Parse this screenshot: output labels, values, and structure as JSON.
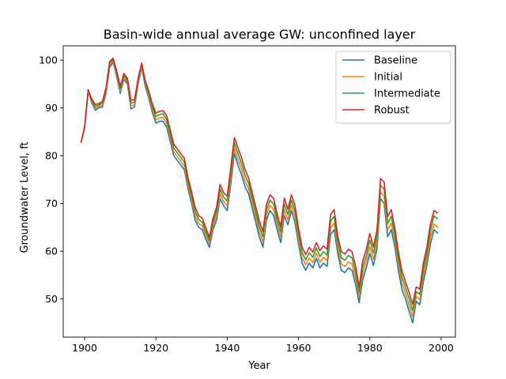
{
  "chart_data": {
    "type": "line",
    "title": "Basin-wide annual average GW: unconfined layer",
    "xlabel": "Year",
    "ylabel": "Groundwater Level, ft",
    "xlim": [
      1894,
      2004
    ],
    "ylim": [
      42,
      103
    ],
    "xticks": [
      1900,
      1920,
      1940,
      1960,
      1980,
      2000
    ],
    "yticks": [
      50,
      60,
      70,
      80,
      90,
      100
    ],
    "grid": false,
    "legend_position": "top-right",
    "x": [
      1899,
      1900,
      1901,
      1902,
      1903,
      1904,
      1905,
      1906,
      1907,
      1908,
      1909,
      1910,
      1911,
      1912,
      1913,
      1914,
      1915,
      1916,
      1917,
      1918,
      1919,
      1920,
      1921,
      1922,
      1923,
      1924,
      1925,
      1926,
      1927,
      1928,
      1929,
      1930,
      1931,
      1932,
      1933,
      1934,
      1935,
      1936,
      1937,
      1938,
      1939,
      1940,
      1941,
      1942,
      1943,
      1944,
      1945,
      1946,
      1947,
      1948,
      1949,
      1950,
      1951,
      1952,
      1953,
      1954,
      1955,
      1956,
      1957,
      1958,
      1959,
      1960,
      1961,
      1962,
      1963,
      1964,
      1965,
      1966,
      1967,
      1968,
      1969,
      1970,
      1971,
      1972,
      1973,
      1974,
      1975,
      1976,
      1977,
      1978,
      1979,
      1980,
      1981,
      1982,
      1983,
      1984,
      1985,
      1986,
      1987,
      1988,
      1989,
      1990,
      1991,
      1992,
      1993,
      1994,
      1995,
      1996,
      1997,
      1998,
      1999
    ],
    "series": [
      {
        "name": "Baseline",
        "color": "#1f77b4",
        "values": [
          82.8,
          85.8,
          93.5,
          91.0,
          89.5,
          90.0,
          90.2,
          93.0,
          98.5,
          99.5,
          96.5,
          93.0,
          96.0,
          95.0,
          89.8,
          90.2,
          95.0,
          98.5,
          94.5,
          92.0,
          89.0,
          86.8,
          87.2,
          87.2,
          86.0,
          83.0,
          80.0,
          79.0,
          78.0,
          77.0,
          73.0,
          70.0,
          66.5,
          65.0,
          64.5,
          62.5,
          60.8,
          64.5,
          66.5,
          71.0,
          69.5,
          68.5,
          74.0,
          80.5,
          78.0,
          76.0,
          73.5,
          72.0,
          69.0,
          66.0,
          63.0,
          60.8,
          66.5,
          68.5,
          67.5,
          64.5,
          61.8,
          67.5,
          65.5,
          68.5,
          66.0,
          61.5,
          57.5,
          56.0,
          57.5,
          56.5,
          58.5,
          56.5,
          57.5,
          56.8,
          63.5,
          64.5,
          59.5,
          56.0,
          55.5,
          56.5,
          56.0,
          53.0,
          49.2,
          54.0,
          56.5,
          59.5,
          57.0,
          60.5,
          71.0,
          70.0,
          63.0,
          64.5,
          61.0,
          56.0,
          52.0,
          50.0,
          47.5,
          45.0,
          49.5,
          48.8,
          53.5,
          57.0,
          61.5,
          64.5,
          63.8
        ]
      },
      {
        "name": "Initial",
        "color": "#ff7f0e",
        "values": [
          82.8,
          85.9,
          93.6,
          91.3,
          89.9,
          90.3,
          90.6,
          93.4,
          98.9,
          99.8,
          96.9,
          93.5,
          96.4,
          95.4,
          90.4,
          90.7,
          95.4,
          98.8,
          94.9,
          92.5,
          89.6,
          87.5,
          87.9,
          88.0,
          86.8,
          83.8,
          80.8,
          79.8,
          78.8,
          77.8,
          73.8,
          70.8,
          67.4,
          65.8,
          65.3,
          63.3,
          61.5,
          65.3,
          67.4,
          72.0,
          70.4,
          69.5,
          75.2,
          81.6,
          79.2,
          77.2,
          74.7,
          73.1,
          70.1,
          67.1,
          64.1,
          61.9,
          67.6,
          69.6,
          68.7,
          65.6,
          62.9,
          68.7,
          66.6,
          69.6,
          67.2,
          62.6,
          58.6,
          57.1,
          58.6,
          57.6,
          59.6,
          57.7,
          58.7,
          58.0,
          64.9,
          65.9,
          60.7,
          57.3,
          56.8,
          57.8,
          57.3,
          54.3,
          50.3,
          55.3,
          57.8,
          60.9,
          58.3,
          61.8,
          72.4,
          71.5,
          64.4,
          65.9,
          62.3,
          57.3,
          53.3,
          51.2,
          48.8,
          46.3,
          50.5,
          49.9,
          54.8,
          58.3,
          62.9,
          65.7,
          65.0
        ]
      },
      {
        "name": "Intermediate",
        "color": "#2ca02c",
        "values": [
          82.8,
          86.0,
          93.7,
          91.6,
          90.3,
          90.6,
          91.0,
          93.8,
          99.3,
          100.1,
          97.3,
          94.0,
          96.8,
          95.8,
          91.0,
          91.2,
          95.8,
          99.1,
          95.3,
          93.0,
          90.2,
          88.2,
          88.6,
          88.8,
          87.6,
          84.6,
          81.6,
          80.6,
          79.6,
          78.6,
          74.6,
          71.6,
          68.3,
          66.6,
          66.1,
          64.1,
          62.2,
          66.1,
          68.3,
          73.0,
          71.3,
          70.5,
          76.4,
          82.7,
          80.4,
          78.4,
          75.9,
          74.2,
          71.2,
          68.2,
          65.2,
          63.0,
          68.7,
          70.7,
          69.9,
          66.7,
          64.0,
          69.9,
          67.7,
          70.7,
          68.4,
          63.7,
          59.7,
          58.2,
          59.7,
          58.7,
          60.7,
          58.9,
          59.9,
          59.2,
          66.3,
          67.3,
          61.9,
          58.6,
          58.1,
          59.1,
          58.6,
          55.6,
          51.4,
          56.6,
          59.1,
          62.3,
          59.6,
          63.1,
          73.8,
          73.0,
          65.8,
          67.3,
          63.6,
          58.6,
          54.6,
          52.4,
          50.1,
          47.6,
          51.5,
          51.0,
          56.1,
          59.6,
          64.3,
          67.4,
          66.8
        ]
      },
      {
        "name": "Robust",
        "color": "#d62728",
        "values": [
          82.8,
          86.1,
          93.8,
          91.9,
          90.7,
          90.9,
          91.4,
          94.2,
          99.7,
          100.4,
          97.7,
          94.5,
          97.2,
          96.2,
          91.6,
          91.7,
          96.2,
          99.4,
          95.7,
          93.5,
          90.8,
          88.9,
          89.3,
          89.4,
          88.4,
          85.4,
          82.4,
          81.4,
          80.4,
          79.4,
          75.4,
          72.4,
          69.2,
          67.4,
          66.9,
          64.9,
          62.9,
          66.9,
          69.2,
          74.0,
          72.2,
          71.5,
          77.6,
          83.8,
          81.6,
          79.6,
          77.1,
          75.3,
          72.3,
          69.3,
          66.3,
          64.1,
          69.8,
          71.8,
          71.1,
          67.8,
          65.1,
          71.1,
          68.8,
          71.8,
          69.6,
          64.8,
          60.8,
          59.3,
          60.8,
          59.8,
          61.8,
          60.1,
          61.1,
          60.4,
          67.7,
          68.7,
          63.1,
          59.9,
          59.4,
          60.4,
          59.9,
          56.9,
          52.5,
          57.9,
          60.4,
          63.7,
          60.9,
          64.4,
          75.2,
          74.5,
          67.2,
          68.7,
          64.9,
          59.9,
          55.9,
          53.6,
          51.4,
          48.9,
          52.5,
          52.1,
          57.4,
          60.9,
          65.7,
          68.5,
          68.0
        ]
      }
    ]
  }
}
